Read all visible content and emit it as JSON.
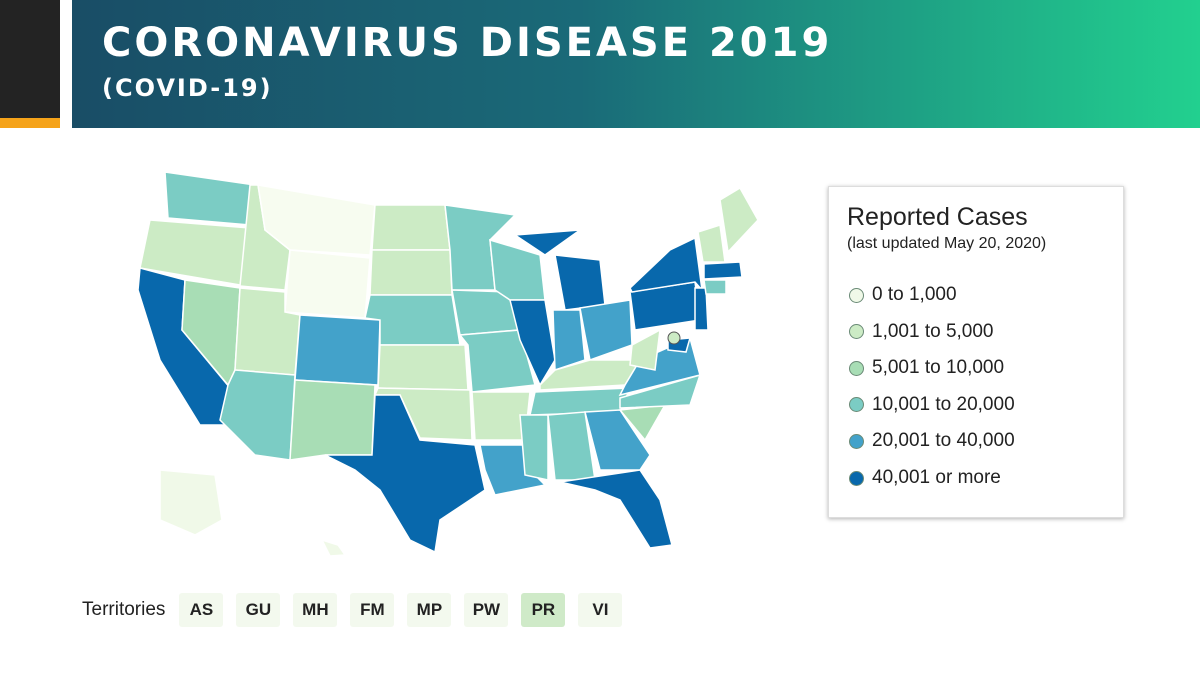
{
  "header": {
    "title": "CORONAVIRUS DISEASE 2019",
    "subtitle": "(COVID-19)"
  },
  "legend": {
    "title": "Reported Cases",
    "subtitle": "(last updated May 20, 2020)",
    "items": [
      {
        "label": "0 to 1,000",
        "color": "#f0f9e8"
      },
      {
        "label": "1,001 to 5,000",
        "color": "#ccebc5"
      },
      {
        "label": "5,001 to 10,000",
        "color": "#a8ddb5"
      },
      {
        "label": "10,001 to 20,000",
        "color": "#7bccc4"
      },
      {
        "label": "20,001 to 40,000",
        "color": "#43a2ca"
      },
      {
        "label": "40,001 or more",
        "color": "#0868ac"
      }
    ]
  },
  "territories": {
    "label": "Territories",
    "items": [
      {
        "label": "AS",
        "color": "#f3f9ee"
      },
      {
        "label": "GU",
        "color": "#f3f9ee"
      },
      {
        "label": "MH",
        "color": "#f3f9ee"
      },
      {
        "label": "FM",
        "color": "#f3f9ee"
      },
      {
        "label": "MP",
        "color": "#f3f9ee"
      },
      {
        "label": "PW",
        "color": "#f3f9ee"
      },
      {
        "label": "PR",
        "color": "#cfeac8"
      },
      {
        "label": "VI",
        "color": "#f3f9ee"
      }
    ]
  }
}
